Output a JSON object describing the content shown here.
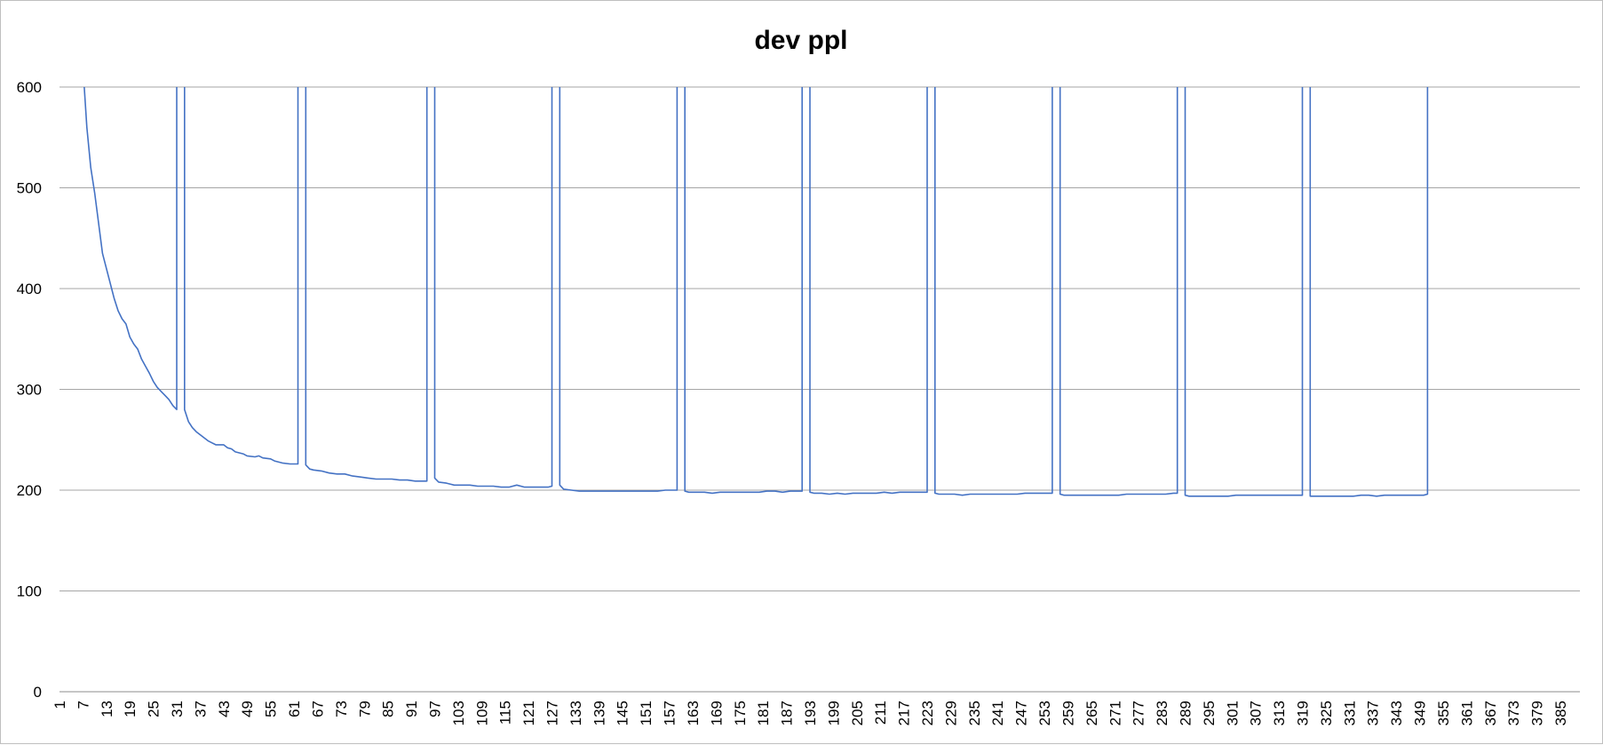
{
  "chart_data": {
    "type": "line",
    "title": "dev ppl",
    "xlabel": "",
    "ylabel": "",
    "ylim": [
      0,
      600
    ],
    "y_ticks": [
      0,
      100,
      200,
      300,
      400,
      500,
      600
    ],
    "x_range": [
      1,
      390
    ],
    "x_tick_start": 1,
    "x_tick_step": 6,
    "x_tick_end": 385,
    "grid": "horizontal",
    "legend": "none",
    "series": [
      {
        "color": "#4472C4",
        "points": [
          [
            7,
            620
          ],
          [
            8,
            560
          ],
          [
            9,
            520
          ],
          [
            10,
            495
          ],
          [
            11,
            465
          ],
          [
            12,
            435
          ],
          [
            13,
            420
          ],
          [
            14,
            405
          ],
          [
            15,
            390
          ],
          [
            16,
            378
          ],
          [
            17,
            370
          ],
          [
            18,
            365
          ],
          [
            19,
            352
          ],
          [
            20,
            345
          ],
          [
            21,
            340
          ],
          [
            22,
            330
          ],
          [
            23,
            323
          ],
          [
            24,
            316
          ],
          [
            25,
            308
          ],
          [
            26,
            302
          ],
          [
            27,
            298
          ],
          [
            28,
            294
          ],
          [
            29,
            290
          ],
          [
            30,
            284
          ],
          [
            31,
            280
          ],
          [
            31,
            620
          ],
          [
            33,
            620
          ],
          [
            33,
            280
          ],
          [
            34,
            268
          ],
          [
            35,
            262
          ],
          [
            36,
            258
          ],
          [
            37,
            255
          ],
          [
            38,
            252
          ],
          [
            39,
            249
          ],
          [
            40,
            247
          ],
          [
            41,
            245
          ],
          [
            43,
            245
          ],
          [
            44,
            242
          ],
          [
            45,
            241
          ],
          [
            46,
            238
          ],
          [
            48,
            236
          ],
          [
            49,
            234
          ],
          [
            51,
            233
          ],
          [
            52,
            234
          ],
          [
            53,
            232
          ],
          [
            55,
            231
          ],
          [
            56,
            229
          ],
          [
            58,
            227
          ],
          [
            60,
            226
          ],
          [
            62,
            226
          ],
          [
            62,
            620
          ],
          [
            64,
            620
          ],
          [
            64,
            225
          ],
          [
            65,
            221
          ],
          [
            66,
            220
          ],
          [
            68,
            219
          ],
          [
            70,
            217
          ],
          [
            72,
            216
          ],
          [
            74,
            216
          ],
          [
            76,
            214
          ],
          [
            78,
            213
          ],
          [
            80,
            212
          ],
          [
            82,
            211
          ],
          [
            84,
            211
          ],
          [
            86,
            211
          ],
          [
            88,
            210
          ],
          [
            90,
            210
          ],
          [
            92,
            209
          ],
          [
            94,
            209
          ],
          [
            95,
            209
          ],
          [
            95,
            620
          ],
          [
            97,
            620
          ],
          [
            97,
            212
          ],
          [
            98,
            208
          ],
          [
            100,
            207
          ],
          [
            102,
            205
          ],
          [
            104,
            205
          ],
          [
            106,
            205
          ],
          [
            108,
            204
          ],
          [
            110,
            204
          ],
          [
            112,
            204
          ],
          [
            114,
            203
          ],
          [
            116,
            203
          ],
          [
            118,
            205
          ],
          [
            120,
            203
          ],
          [
            122,
            203
          ],
          [
            124,
            203
          ],
          [
            126,
            203
          ],
          [
            127,
            204
          ],
          [
            127,
            620
          ],
          [
            129,
            620
          ],
          [
            129,
            205
          ],
          [
            130,
            201
          ],
          [
            132,
            200
          ],
          [
            134,
            199
          ],
          [
            136,
            199
          ],
          [
            138,
            199
          ],
          [
            140,
            199
          ],
          [
            142,
            199
          ],
          [
            144,
            199
          ],
          [
            146,
            199
          ],
          [
            148,
            199
          ],
          [
            150,
            199
          ],
          [
            152,
            199
          ],
          [
            154,
            199
          ],
          [
            156,
            200
          ],
          [
            158,
            200
          ],
          [
            159,
            200
          ],
          [
            159,
            620
          ],
          [
            161,
            620
          ],
          [
            161,
            199
          ],
          [
            162,
            198
          ],
          [
            164,
            198
          ],
          [
            166,
            198
          ],
          [
            168,
            197
          ],
          [
            170,
            198
          ],
          [
            172,
            198
          ],
          [
            174,
            198
          ],
          [
            176,
            198
          ],
          [
            178,
            198
          ],
          [
            180,
            198
          ],
          [
            182,
            199
          ],
          [
            184,
            199
          ],
          [
            186,
            198
          ],
          [
            188,
            199
          ],
          [
            190,
            199
          ],
          [
            191,
            199
          ],
          [
            191,
            620
          ],
          [
            193,
            620
          ],
          [
            193,
            198
          ],
          [
            194,
            197
          ],
          [
            196,
            197
          ],
          [
            198,
            196
          ],
          [
            200,
            197
          ],
          [
            202,
            196
          ],
          [
            204,
            197
          ],
          [
            206,
            197
          ],
          [
            208,
            197
          ],
          [
            210,
            197
          ],
          [
            212,
            198
          ],
          [
            214,
            197
          ],
          [
            216,
            198
          ],
          [
            218,
            198
          ],
          [
            220,
            198
          ],
          [
            222,
            198
          ],
          [
            223,
            198
          ],
          [
            223,
            620
          ],
          [
            225,
            620
          ],
          [
            225,
            197
          ],
          [
            226,
            196
          ],
          [
            228,
            196
          ],
          [
            230,
            196
          ],
          [
            232,
            195
          ],
          [
            234,
            196
          ],
          [
            236,
            196
          ],
          [
            238,
            196
          ],
          [
            240,
            196
          ],
          [
            242,
            196
          ],
          [
            244,
            196
          ],
          [
            246,
            196
          ],
          [
            248,
            197
          ],
          [
            250,
            197
          ],
          [
            252,
            197
          ],
          [
            254,
            197
          ],
          [
            255,
            197
          ],
          [
            255,
            620
          ],
          [
            257,
            620
          ],
          [
            257,
            196
          ],
          [
            258,
            195
          ],
          [
            260,
            195
          ],
          [
            262,
            195
          ],
          [
            264,
            195
          ],
          [
            266,
            195
          ],
          [
            268,
            195
          ],
          [
            270,
            195
          ],
          [
            272,
            195
          ],
          [
            274,
            196
          ],
          [
            276,
            196
          ],
          [
            278,
            196
          ],
          [
            280,
            196
          ],
          [
            282,
            196
          ],
          [
            284,
            196
          ],
          [
            286,
            197
          ],
          [
            287,
            197
          ],
          [
            287,
            620
          ],
          [
            289,
            620
          ],
          [
            289,
            195
          ],
          [
            290,
            194
          ],
          [
            292,
            194
          ],
          [
            294,
            194
          ],
          [
            296,
            194
          ],
          [
            298,
            194
          ],
          [
            300,
            194
          ],
          [
            302,
            195
          ],
          [
            304,
            195
          ],
          [
            306,
            195
          ],
          [
            308,
            195
          ],
          [
            310,
            195
          ],
          [
            312,
            195
          ],
          [
            314,
            195
          ],
          [
            316,
            195
          ],
          [
            318,
            195
          ],
          [
            319,
            195
          ],
          [
            319,
            620
          ],
          [
            321,
            620
          ],
          [
            321,
            194
          ],
          [
            322,
            194
          ],
          [
            324,
            194
          ],
          [
            326,
            194
          ],
          [
            328,
            194
          ],
          [
            330,
            194
          ],
          [
            332,
            194
          ],
          [
            334,
            195
          ],
          [
            336,
            195
          ],
          [
            338,
            194
          ],
          [
            340,
            195
          ],
          [
            342,
            195
          ],
          [
            344,
            195
          ],
          [
            346,
            195
          ],
          [
            348,
            195
          ],
          [
            350,
            195
          ],
          [
            351,
            196
          ],
          [
            351,
            620
          ]
        ]
      }
    ]
  }
}
